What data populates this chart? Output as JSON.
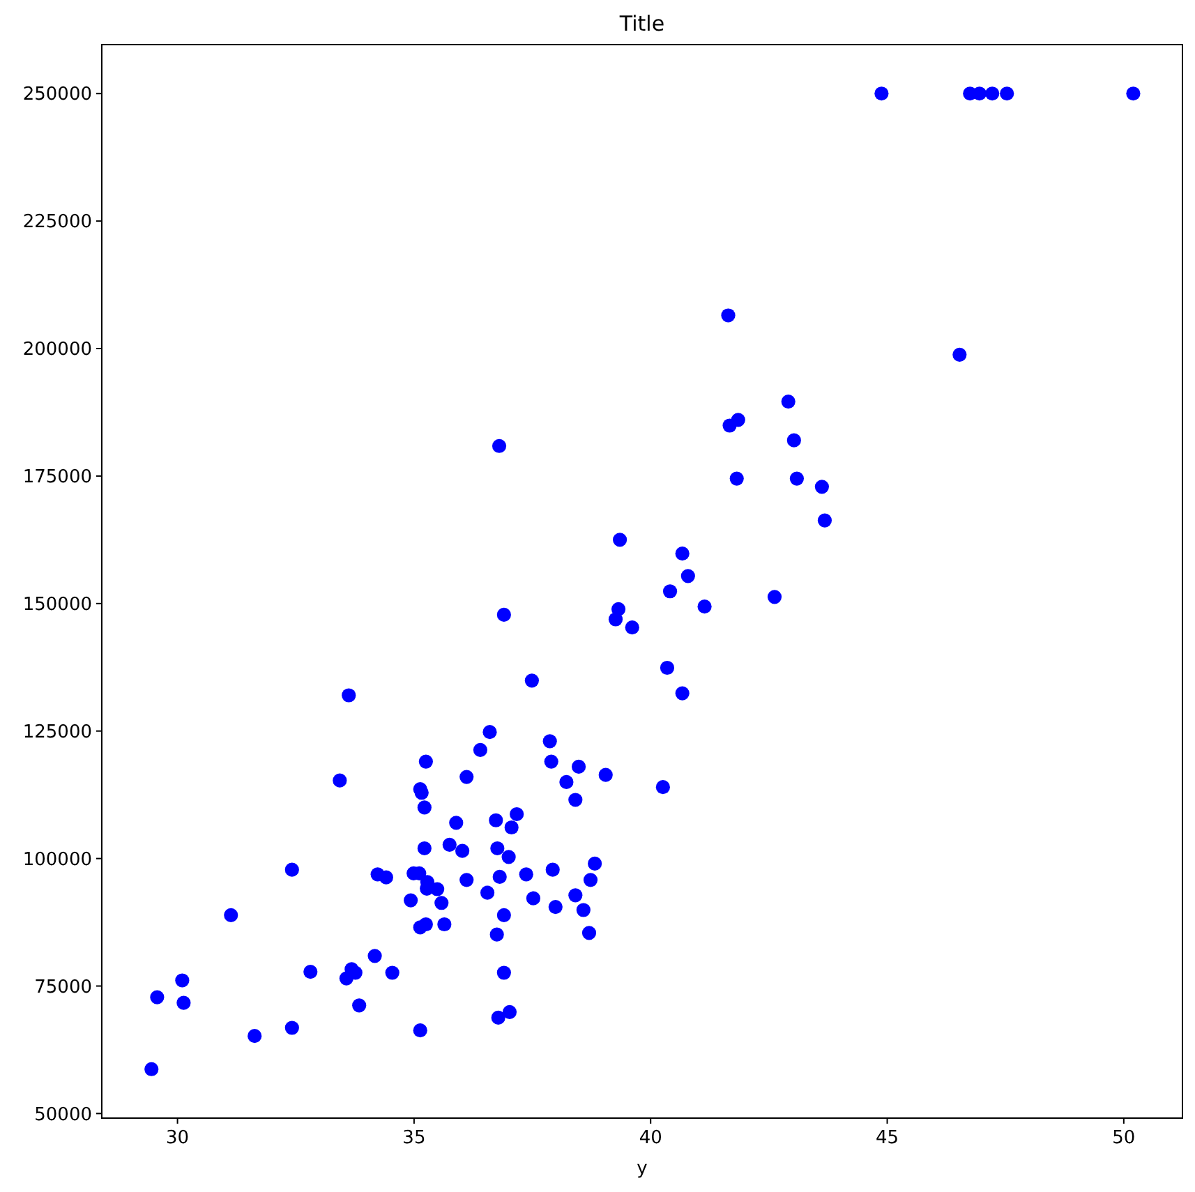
{
  "chart_data": {
    "type": "scatter",
    "title": "Title",
    "xlabel": "y",
    "marker": "circle",
    "grid": false,
    "xlim": [
      28.4,
      51.24
    ],
    "ylim": [
      49100,
      259600
    ],
    "xticks": [
      30,
      35,
      40,
      45,
      50
    ],
    "yticks": [
      50000,
      75000,
      100000,
      125000,
      150000,
      175000,
      200000,
      225000,
      250000
    ],
    "series": [
      {
        "color": "#0000ff",
        "x": [
          29.45,
          29.57,
          30.1,
          30.13,
          31.13,
          31.63,
          32.42,
          32.42,
          32.81,
          33.43,
          33.57,
          33.62,
          33.68,
          33.76,
          33.84,
          34.17,
          34.23,
          34.41,
          34.54,
          34.93,
          34.99,
          35.11,
          35.13,
          35.13,
          35.13,
          35.16,
          35.22,
          35.22,
          35.25,
          35.25,
          35.27,
          35.28,
          35.49,
          35.58,
          35.64,
          35.75,
          35.89,
          36.02,
          36.11,
          36.11,
          36.4,
          36.55,
          36.6,
          36.73,
          36.75,
          36.76,
          36.78,
          36.8,
          36.81,
          36.9,
          36.9,
          36.9,
          37.0,
          37.02,
          37.06,
          37.17,
          37.37,
          37.49,
          37.52,
          37.87,
          37.9,
          37.93,
          37.99,
          38.22,
          38.41,
          38.41,
          38.48,
          38.58,
          38.7,
          38.73,
          38.82,
          39.05,
          39.26,
          39.32,
          39.35,
          39.61,
          40.26,
          40.35,
          40.41,
          40.67,
          40.67,
          40.79,
          41.14,
          41.64,
          41.67,
          41.82,
          41.85,
          42.62,
          42.91,
          43.03,
          43.09,
          43.62,
          43.68,
          44.88,
          46.53,
          46.75,
          46.95,
          47.22,
          47.53,
          50.2
        ],
        "values": [
          58700,
          72800,
          76100,
          71700,
          88900,
          65200,
          97800,
          66800,
          77800,
          115300,
          76500,
          132000,
          78300,
          77600,
          71200,
          80900,
          96900,
          96300,
          77600,
          91800,
          97100,
          97100,
          86500,
          113600,
          66300,
          112900,
          110000,
          102000,
          87100,
          119000,
          94100,
          95400,
          94000,
          91300,
          87100,
          102700,
          107000,
          101500,
          95800,
          116000,
          121300,
          93300,
          124800,
          107500,
          85100,
          102000,
          68800,
          180900,
          96400,
          88900,
          77600,
          147800,
          100300,
          69900,
          106100,
          108700,
          96900,
          134900,
          92200,
          123000,
          119000,
          97800,
          90500,
          115000,
          111500,
          92800,
          118000,
          89900,
          85400,
          95800,
          99000,
          116400,
          146900,
          148900,
          162500,
          145300,
          114000,
          137400,
          152400,
          159800,
          132400,
          155400,
          149400,
          206500,
          184900,
          174500,
          186000,
          151300,
          189600,
          182000,
          174500,
          172900,
          166300,
          250000,
          198800,
          250000,
          250000,
          250000,
          250000,
          250000
        ]
      }
    ]
  }
}
